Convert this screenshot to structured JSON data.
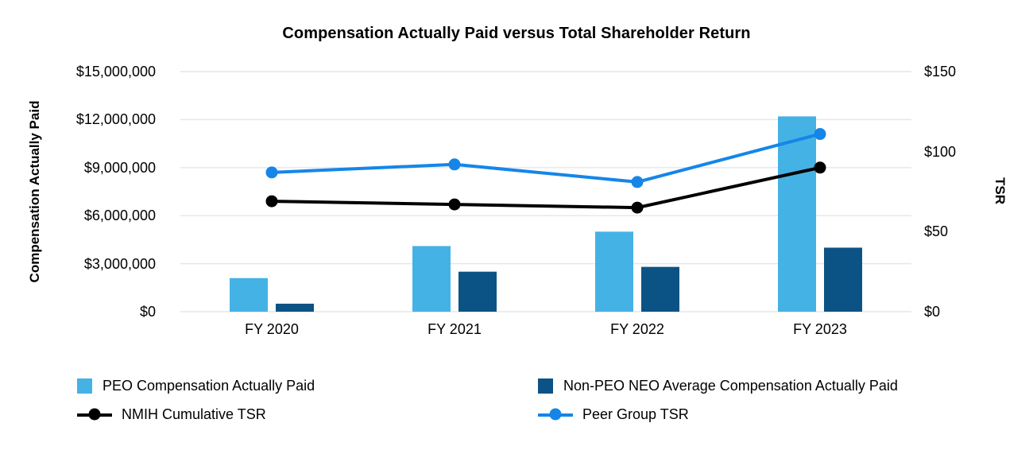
{
  "title": "Compensation Actually Paid versus Total Shareholder Return",
  "chart_data": {
    "type": "combo-bar-line",
    "title": "Compensation Actually Paid versus Total Shareholder Return",
    "categories": [
      "FY 2020",
      "FY 2021",
      "FY 2022",
      "FY 2023"
    ],
    "bar_series": [
      {
        "name": "PEO Compensation Actually Paid",
        "axis": "left",
        "color": "#45B2E5",
        "values": [
          2100000,
          4100000,
          5000000,
          12200000
        ]
      },
      {
        "name": "Non-PEO NEO Average Compensation Actually Paid",
        "axis": "left",
        "color": "#0C5385",
        "values": [
          500000,
          2500000,
          2800000,
          4000000
        ]
      }
    ],
    "line_series": [
      {
        "name": "NMIH Cumulative TSR",
        "axis": "right",
        "color": "#000000",
        "values": [
          69,
          67,
          65,
          90
        ]
      },
      {
        "name": "Peer Group TSR",
        "axis": "right",
        "color": "#1586E8",
        "values": [
          87,
          92,
          81,
          111
        ]
      }
    ],
    "left_axis": {
      "title": "Compensation Actually Paid",
      "range": [
        0,
        15000000
      ],
      "ticks": [
        {
          "value": 15000000,
          "label": "$15,000,000"
        },
        {
          "value": 12000000,
          "label": "$12,000,000"
        },
        {
          "value": 9000000,
          "label": "$9,000,000"
        },
        {
          "value": 6000000,
          "label": "$6,000,000"
        },
        {
          "value": 3000000,
          "label": "$3,000,000"
        },
        {
          "value": 0,
          "label": "$0"
        }
      ]
    },
    "right_axis": {
      "title": "TSR",
      "range": [
        0,
        150
      ],
      "ticks": [
        {
          "value": 150,
          "label": "$150"
        },
        {
          "value": 100,
          "label": "$100"
        },
        {
          "value": 50,
          "label": "$50"
        },
        {
          "value": 0,
          "label": "$0"
        }
      ]
    },
    "grid": "horizontal",
    "legend_position": "bottom"
  },
  "legend": {
    "items": [
      {
        "label": "PEO Compensation Actually Paid",
        "marker": "bar",
        "color": "#45B2E5",
        "column": 0,
        "row": 0
      },
      {
        "label": "Non-PEO NEO Average Compensation Actually Paid",
        "marker": "bar",
        "color": "#0C5385",
        "column": 1,
        "row": 0
      },
      {
        "label": "NMIH Cumulative TSR",
        "marker": "line",
        "color": "#000000",
        "column": 0,
        "row": 1
      },
      {
        "label": "Peer Group TSR",
        "marker": "line",
        "color": "#1586E8",
        "column": 1,
        "row": 1
      }
    ]
  },
  "colors": {
    "background": "#FFFFFF",
    "grid": "#E6E6E6",
    "text": "#000000"
  }
}
